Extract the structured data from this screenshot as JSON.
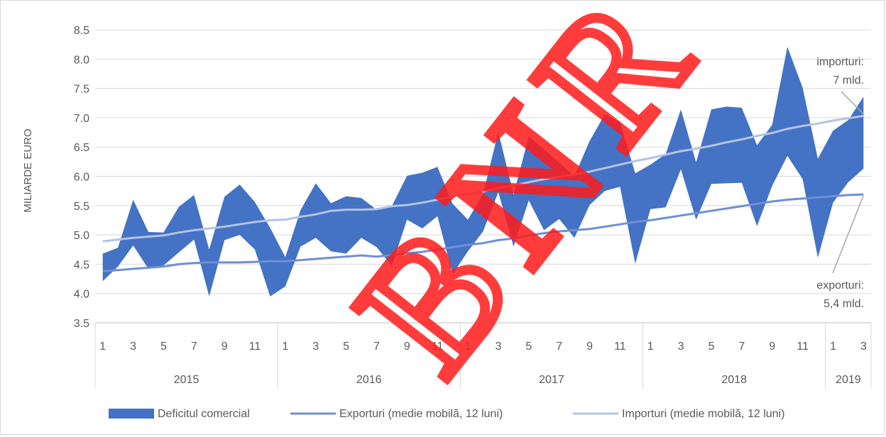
{
  "chart_data": {
    "type": "area",
    "ylabel": "MILIARDE EURO",
    "ylim": [
      3.5,
      8.5
    ],
    "yticks": [
      "3.5",
      "4.0",
      "4.5",
      "5.0",
      "5.5",
      "6.0",
      "6.5",
      "7.0",
      "7.5",
      "8.0",
      "8.5"
    ],
    "grid": true,
    "legend_position": "bottom",
    "month_labels": [
      "1",
      "3",
      "5",
      "7",
      "9",
      "11",
      "1",
      "3",
      "5",
      "7",
      "9",
      "11",
      "1",
      "3",
      "5",
      "7",
      "9",
      "11",
      "1",
      "3",
      "5",
      "7",
      "9",
      "11",
      "1",
      "3"
    ],
    "years": [
      {
        "label": "2015",
        "months": 12
      },
      {
        "label": "2016",
        "months": 12
      },
      {
        "label": "2017",
        "months": 12
      },
      {
        "label": "2018",
        "months": 12
      },
      {
        "label": "2019",
        "months": 3
      }
    ],
    "series": [
      {
        "name": "Deficitul comercial",
        "kind": "band",
        "color": "#4472c4",
        "upper": [
          4.68,
          4.78,
          5.6,
          5.05,
          5.04,
          5.48,
          5.68,
          4.75,
          5.65,
          5.86,
          5.56,
          5.12,
          4.62,
          5.42,
          5.88,
          5.54,
          5.66,
          5.63,
          5.43,
          5.49,
          6.01,
          6.06,
          6.16,
          5.53,
          5.26,
          5.7,
          6.76,
          5.69,
          6.68,
          6.46,
          6.23,
          6.0,
          6.6,
          7.06,
          6.92,
          6.05,
          6.2,
          6.38,
          7.14,
          6.24,
          7.14,
          7.19,
          7.17,
          6.53,
          6.88,
          8.21,
          7.51,
          6.3,
          6.78,
          6.96,
          7.36
        ],
        "lower": [
          4.21,
          4.46,
          4.82,
          4.42,
          4.48,
          4.7,
          4.92,
          3.95,
          4.91,
          5.0,
          4.75,
          3.95,
          4.12,
          4.8,
          4.95,
          4.72,
          4.68,
          4.95,
          4.79,
          4.47,
          5.26,
          5.11,
          5.32,
          4.33,
          4.72,
          5.06,
          5.73,
          4.8,
          5.59,
          5.08,
          5.27,
          4.95,
          5.51,
          5.75,
          5.82,
          4.51,
          5.44,
          5.47,
          6.12,
          5.26,
          5.87,
          5.88,
          5.89,
          5.15,
          5.84,
          6.35,
          5.95,
          4.61,
          5.55,
          5.9,
          6.13
        ]
      },
      {
        "name": "Exporturi (medie mobilă, 12 luni)",
        "kind": "line",
        "color": "#6f8fd6",
        "values": [
          4.38,
          4.4,
          4.42,
          4.44,
          4.46,
          4.5,
          4.52,
          4.53,
          4.53,
          4.53,
          4.54,
          4.55,
          4.55,
          4.57,
          4.59,
          4.61,
          4.63,
          4.65,
          4.63,
          4.66,
          4.69,
          4.71,
          4.75,
          4.79,
          4.83,
          4.86,
          4.91,
          4.94,
          4.99,
          5.03,
          5.06,
          5.08,
          5.1,
          5.14,
          5.18,
          5.22,
          5.25,
          5.29,
          5.33,
          5.37,
          5.41,
          5.45,
          5.49,
          5.53,
          5.57,
          5.6,
          5.62,
          5.64,
          5.66,
          5.68,
          5.69
        ]
      },
      {
        "name": "Importuri (medie mobilă, 12 luni)",
        "kind": "line",
        "color": "#b4c3e6",
        "values": [
          4.89,
          4.92,
          4.95,
          4.97,
          4.99,
          5.04,
          5.08,
          5.11,
          5.14,
          5.18,
          5.22,
          5.25,
          5.26,
          5.31,
          5.35,
          5.41,
          5.43,
          5.43,
          5.44,
          5.49,
          5.51,
          5.55,
          5.6,
          5.66,
          5.7,
          5.74,
          5.8,
          5.84,
          5.9,
          5.95,
          5.99,
          6.03,
          6.08,
          6.14,
          6.2,
          6.26,
          6.31,
          6.37,
          6.43,
          6.47,
          6.52,
          6.58,
          6.63,
          6.69,
          6.74,
          6.81,
          6.86,
          6.9,
          6.95,
          6.99,
          7.03
        ]
      }
    ],
    "annotations": [
      {
        "lines": [
          "importuri:",
          "7 mld."
        ]
      },
      {
        "lines": [
          "exporturi:",
          "5,4 mld."
        ]
      }
    ],
    "watermark": "BNR"
  }
}
